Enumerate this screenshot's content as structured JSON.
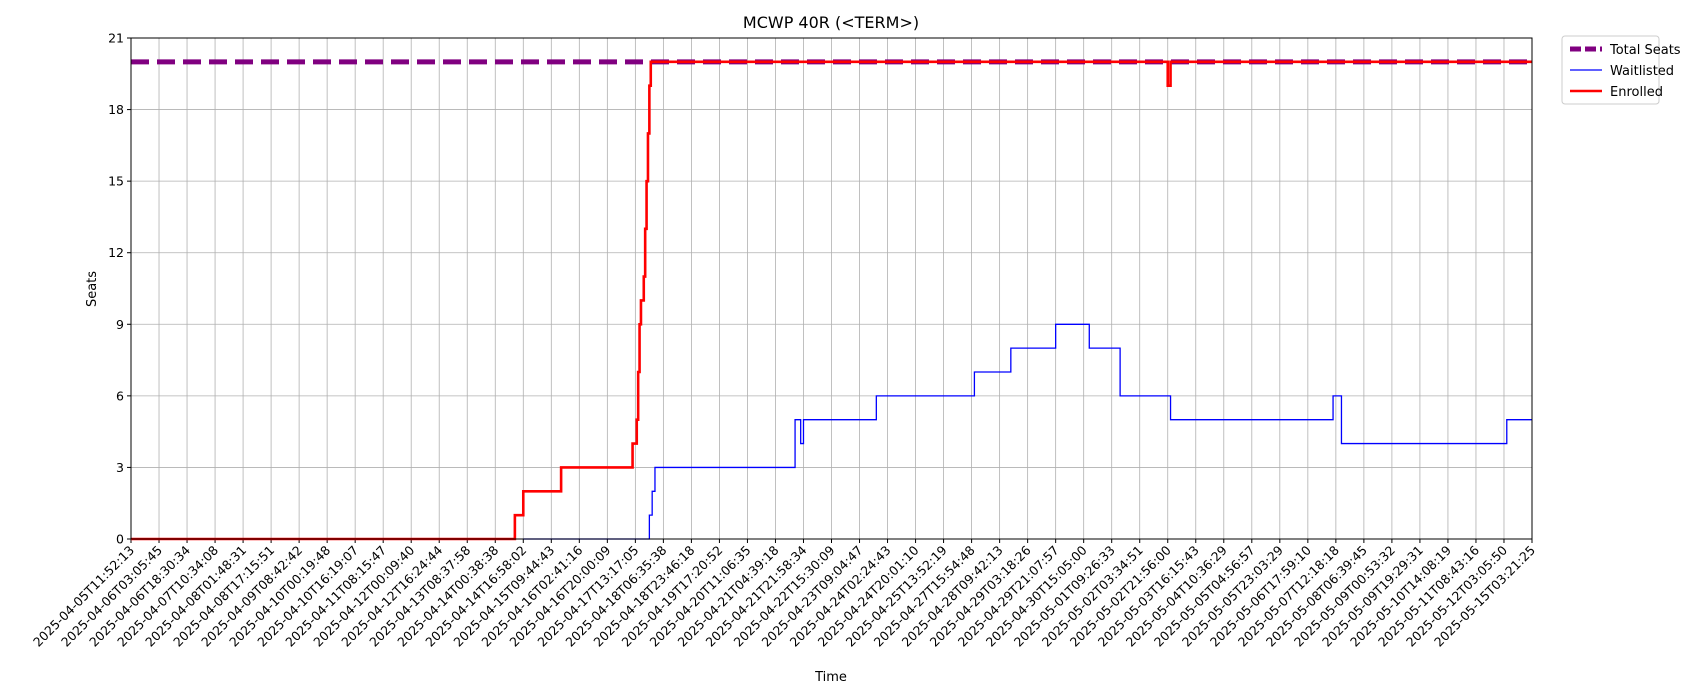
{
  "chart_data": {
    "type": "line",
    "title": "MCWP 40R (<TERM>)",
    "xlabel": "Time",
    "ylabel": "Seats",
    "ylim": [
      0,
      21
    ],
    "yticks": [
      "0",
      "3",
      "6",
      "9",
      "12",
      "15",
      "18",
      "21"
    ],
    "grid": true,
    "legend_position": "outside-top-right",
    "x_categories": [
      "2025-04-05T11:52:13",
      "2025-04-06T03:05:45",
      "2025-04-06T18:30:34",
      "2025-04-07T10:34:08",
      "2025-04-08T01:48:31",
      "2025-04-08T17:15:51",
      "2025-04-09T08:42:42",
      "2025-04-10T00:19:48",
      "2025-04-10T16:19:07",
      "2025-04-11T08:15:47",
      "2025-04-12T00:09:40",
      "2025-04-12T16:24:44",
      "2025-04-13T08:37:58",
      "2025-04-14T00:38:38",
      "2025-04-14T16:58:02",
      "2025-04-15T09:44:43",
      "2025-04-16T02:41:16",
      "2025-04-16T20:00:09",
      "2025-04-17T13:17:05",
      "2025-04-18T06:35:38",
      "2025-04-18T23:46:18",
      "2025-04-19T17:20:52",
      "2025-04-20T11:06:35",
      "2025-04-21T04:39:18",
      "2025-04-21T21:58:34",
      "2025-04-22T15:30:09",
      "2025-04-23T09:04:47",
      "2025-04-24T02:24:43",
      "2025-04-24T20:01:10",
      "2025-04-25T13:52:19",
      "2025-04-27T15:54:48",
      "2025-04-28T09:42:13",
      "2025-04-29T03:18:26",
      "2025-04-29T21:07:57",
      "2025-04-30T15:05:00",
      "2025-05-01T09:26:33",
      "2025-05-02T03:34:51",
      "2025-05-02T21:56:00",
      "2025-05-03T16:15:43",
      "2025-05-04T10:36:29",
      "2025-05-05T04:56:57",
      "2025-05-05T23:03:29",
      "2025-05-06T17:59:10",
      "2025-05-07T12:18:18",
      "2025-05-08T06:39:45",
      "2025-05-09T00:53:32",
      "2025-05-09T19:29:31",
      "2025-05-10T14:08:19",
      "2025-05-11T08:43:16",
      "2025-05-12T03:05:50",
      "2025-05-15T03:21:25"
    ],
    "series": [
      {
        "name": "Total Seats",
        "color": "#800080",
        "style": "dashed",
        "points": [
          [
            0,
            20
          ],
          [
            50,
            20
          ]
        ]
      },
      {
        "name": "Waitlisted",
        "color": "#0000ff",
        "style": "steps",
        "points": [
          [
            14,
            0
          ],
          [
            18.5,
            0
          ],
          [
            18.5,
            1
          ],
          [
            18.6,
            1
          ],
          [
            18.6,
            2
          ],
          [
            18.7,
            2
          ],
          [
            18.7,
            3
          ],
          [
            23.7,
            3
          ],
          [
            23.7,
            5
          ],
          [
            23.9,
            5
          ],
          [
            23.9,
            4
          ],
          [
            24.0,
            4
          ],
          [
            24.0,
            5
          ],
          [
            26.6,
            5
          ],
          [
            26.6,
            6
          ],
          [
            30.1,
            6
          ],
          [
            30.1,
            7
          ],
          [
            31.4,
            7
          ],
          [
            31.4,
            8
          ],
          [
            33.0,
            8
          ],
          [
            33.0,
            9
          ],
          [
            34.2,
            9
          ],
          [
            34.2,
            8
          ],
          [
            35.3,
            8
          ],
          [
            35.3,
            6
          ],
          [
            37.1,
            6
          ],
          [
            37.1,
            5
          ],
          [
            42.9,
            5
          ],
          [
            42.9,
            6
          ],
          [
            43.2,
            6
          ],
          [
            43.2,
            4
          ],
          [
            49.1,
            4
          ],
          [
            49.1,
            5
          ],
          [
            50,
            5
          ]
        ]
      },
      {
        "name": "Enrolled",
        "color": "#ff0000",
        "style": "steps",
        "points": [
          [
            0,
            0
          ],
          [
            13.7,
            0
          ],
          [
            13.7,
            1
          ],
          [
            14.0,
            1
          ],
          [
            14.0,
            2
          ],
          [
            15.35,
            2
          ],
          [
            15.35,
            3
          ],
          [
            17.9,
            3
          ],
          [
            17.9,
            4
          ],
          [
            18.05,
            4
          ],
          [
            18.05,
            5
          ],
          [
            18.1,
            5
          ],
          [
            18.1,
            7
          ],
          [
            18.15,
            7
          ],
          [
            18.15,
            9
          ],
          [
            18.2,
            9
          ],
          [
            18.2,
            10
          ],
          [
            18.3,
            10
          ],
          [
            18.3,
            11
          ],
          [
            18.35,
            11
          ],
          [
            18.35,
            13
          ],
          [
            18.4,
            13
          ],
          [
            18.4,
            15
          ],
          [
            18.45,
            15
          ],
          [
            18.45,
            17
          ],
          [
            18.5,
            17
          ],
          [
            18.5,
            19
          ],
          [
            18.55,
            19
          ],
          [
            18.55,
            20
          ],
          [
            37.0,
            20
          ],
          [
            37.0,
            19
          ],
          [
            37.1,
            19
          ],
          [
            37.1,
            20
          ],
          [
            50,
            20
          ]
        ]
      }
    ]
  }
}
